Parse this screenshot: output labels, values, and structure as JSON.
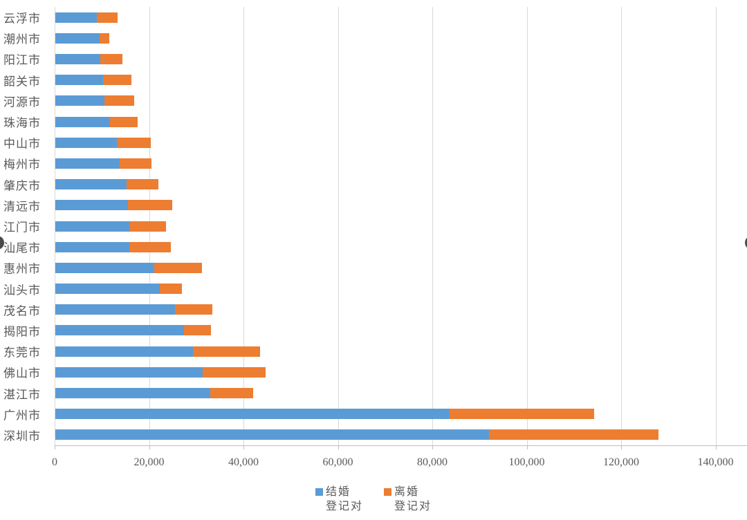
{
  "chart_data": {
    "type": "bar",
    "orientation": "horizontal-stacked",
    "title": "",
    "categories": [
      "云浮市",
      "潮州市",
      "阳江市",
      "韶关市",
      "河源市",
      "珠海市",
      "中山市",
      "梅州市",
      "肇庆市",
      "清远市",
      "江门市",
      "汕尾市",
      "惠州市",
      "汕头市",
      "茂名市",
      "揭阳市",
      "东莞市",
      "佛山市",
      "湛江市",
      "广州市",
      "深圳市"
    ],
    "series": [
      {
        "name": "结婚登记对",
        "legend_lines": [
          "结婚",
          "登记对"
        ],
        "color": "#5b9bd5",
        "values": [
          8800,
          9400,
          9500,
          10100,
          10400,
          11600,
          13000,
          13600,
          15100,
          15400,
          15700,
          15700,
          21000,
          22100,
          25300,
          27300,
          29200,
          31200,
          32800,
          83500,
          91900
        ]
      },
      {
        "name": "离婚登记对",
        "legend_lines": [
          "离婚",
          "登记对"
        ],
        "color": "#ed7d31",
        "values": [
          4400,
          2100,
          4700,
          6000,
          6300,
          5900,
          7200,
          6700,
          6700,
          9400,
          7800,
          8800,
          10100,
          4700,
          7900,
          5700,
          14100,
          13300,
          9100,
          30600,
          35800
        ]
      }
    ],
    "x_axis": {
      "min": 0,
      "max": 140000,
      "tick_step": 20000,
      "tick_labels": [
        "0",
        "20,000",
        "40,000",
        "60,000",
        "80,000",
        "100,000",
        "120,000",
        "140,000"
      ]
    },
    "y_axis": {
      "label": ""
    },
    "grid": true,
    "legend_position": "bottom"
  },
  "colors": {
    "marriage_blue": "#5b9bd5",
    "divorce_orange": "#ed7d31",
    "gridline": "#d9d9d9",
    "axis": "#bfbfbf",
    "text": "#595959",
    "nav_circle": "#4a4a4a"
  },
  "decorations": {
    "left_edge_circle": "partial dark circle clipped at left edge",
    "right_edge_circle": "partial dark circle clipped at right edge"
  }
}
